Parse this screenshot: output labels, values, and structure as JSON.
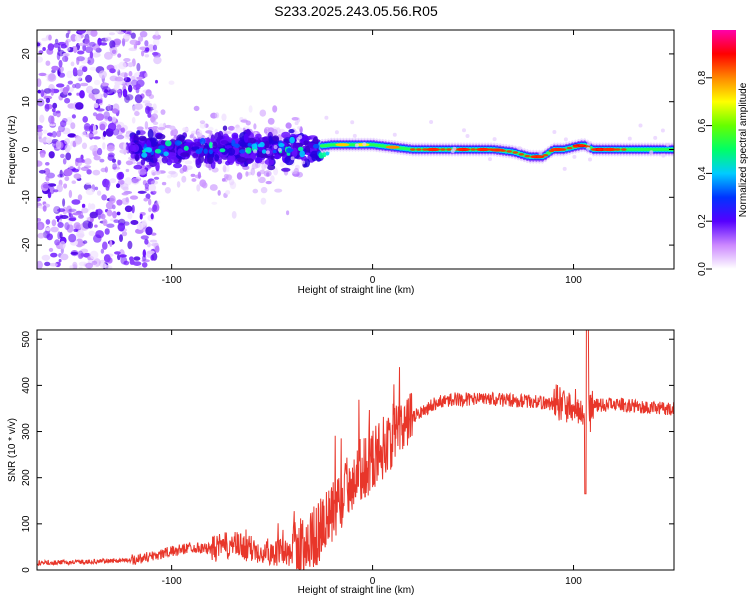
{
  "title": "S233.2025.243.05.56.R05",
  "chart_data": [
    {
      "type": "heatmap",
      "title": "S233.2025.243.05.56.R05",
      "xlabel": "Height of straight line (km)",
      "ylabel": "Frequency (Hz)",
      "xlim": [
        -167,
        150
      ],
      "ylim": [
        -25,
        25
      ],
      "x_ticks": [
        -100,
        0,
        100
      ],
      "y_ticks": [
        20,
        10,
        0,
        -10,
        -20
      ],
      "colorbar": {
        "label": "Normalized spectral amplitude",
        "range": [
          0,
          1
        ],
        "ticks": [
          "0.0",
          "0.2",
          "0.4",
          "0.6",
          "0.8"
        ]
      },
      "ridge": {
        "x": [
          -120,
          -100,
          -80,
          -60,
          -40,
          -30,
          -20,
          0,
          20,
          40,
          60,
          70,
          78,
          85,
          90,
          95,
          100,
          105,
          110,
          120,
          150
        ],
        "freq": [
          0,
          0,
          0,
          0,
          0,
          0.5,
          1,
          1,
          0,
          0,
          0,
          -0.5,
          -1.5,
          -1.5,
          0,
          0,
          0.5,
          1,
          0,
          0,
          0
        ]
      }
    },
    {
      "type": "line",
      "xlabel": "Height of straight line (km)",
      "ylabel": "SNR (10 * v/v)",
      "xlim": [
        -167,
        150
      ],
      "ylim": [
        0,
        520
      ],
      "x_ticks": [
        -100,
        0,
        100
      ],
      "y_ticks": [
        0,
        100,
        200,
        300,
        400,
        500
      ],
      "color": "#e8362a",
      "series": [
        {
          "name": "SNR",
          "x": [
            -167,
            -140,
            -120,
            -110,
            -100,
            -90,
            -80,
            -70,
            -60,
            -50,
            -40,
            -35,
            -30,
            -20,
            -10,
            0,
            10,
            20,
            30,
            40,
            60,
            80,
            90,
            100,
            105,
            110,
            120,
            130,
            140,
            150
          ],
          "values": [
            15,
            18,
            22,
            30,
            40,
            50,
            45,
            55,
            45,
            40,
            35,
            50,
            65,
            120,
            200,
            240,
            290,
            330,
            360,
            370,
            370,
            365,
            360,
            350,
            340,
            355,
            360,
            355,
            350,
            350
          ]
        }
      ]
    }
  ]
}
